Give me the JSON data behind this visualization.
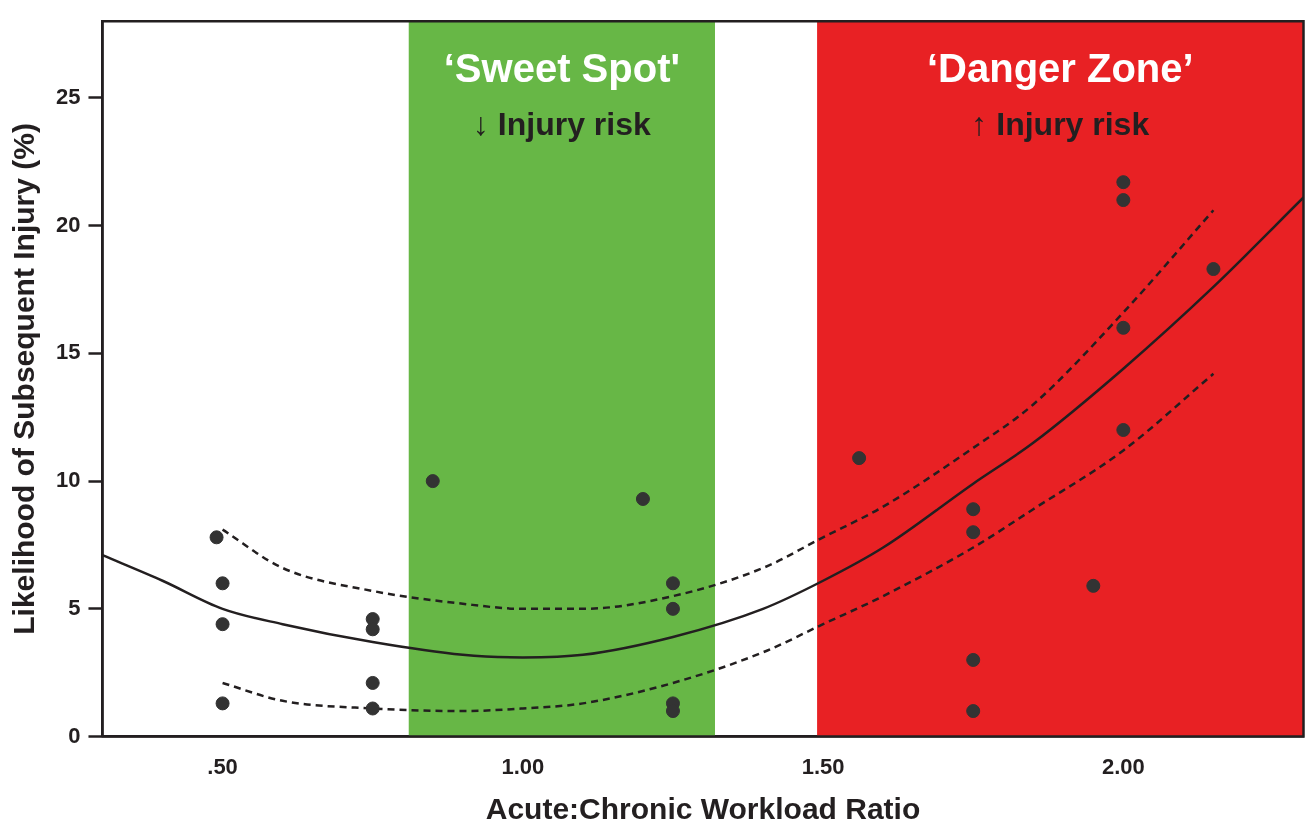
{
  "chart_data": {
    "type": "scatter",
    "xlabel": "Acute:Chronic Workload Ratio",
    "ylabel": "Likelihood of Subsequent Injury (%)",
    "xlim": [
      0.3,
      2.3
    ],
    "xticks": [
      {
        "value": 0.5,
        "label": ".50"
      },
      {
        "value": 1.0,
        "label": "1.00"
      },
      {
        "value": 1.5,
        "label": "1.50"
      },
      {
        "value": 2.0,
        "label": "2.00"
      }
    ],
    "ylim": [
      0,
      28
    ],
    "yticks": [
      0,
      5,
      10,
      15,
      20,
      25
    ],
    "grid": false,
    "legend": false,
    "marker": "circle",
    "bands": [
      {
        "axis": "x",
        "from": 0.81,
        "to": 1.32,
        "label": "‘Sweet Spot'",
        "color": "#67b746"
      },
      {
        "axis": "x",
        "from": 1.49,
        "to": 2.3,
        "label": "‘Danger Zone’",
        "color": "#e82124"
      }
    ],
    "annotations": [
      "↓ Injury risk",
      "↑ Injury risk"
    ],
    "series": [
      {
        "color": "#333333",
        "x": [
          0.49,
          0.5,
          0.5,
          0.5,
          0.75,
          0.75,
          0.75,
          0.75,
          0.85,
          1.2,
          1.25,
          1.25,
          1.25,
          1.25,
          1.56,
          1.75,
          1.75,
          1.75,
          1.75,
          1.95,
          2.0,
          2.0,
          2.0,
          2.0,
          2.15
        ],
        "values": [
          7.8,
          6.0,
          4.4,
          1.3,
          4.6,
          4.2,
          2.1,
          1.1,
          10.0,
          9.3,
          6.0,
          5.0,
          1.3,
          1.0,
          10.9,
          8.9,
          8.0,
          3.0,
          1.0,
          5.9,
          21.7,
          21.0,
          16.0,
          12.0,
          18.3
        ]
      },
      {
        "type": "line",
        "color": "#231f20",
        "line_style": "solid",
        "marker": "none",
        "x": [
          0.3,
          0.4,
          0.5,
          0.6,
          0.75,
          0.9,
          1.0,
          1.1,
          1.25,
          1.4,
          1.5,
          1.6,
          1.75,
          1.85,
          2.0,
          2.15,
          2.3
        ],
        "values": [
          7.1,
          6.1,
          5.0,
          4.4,
          3.7,
          3.2,
          3.1,
          3.2,
          3.9,
          5.0,
          6.1,
          7.4,
          9.9,
          11.5,
          14.4,
          17.6,
          21.1
        ]
      },
      {
        "type": "line",
        "color": "#231f20",
        "line_style": "dashed",
        "marker": "none",
        "x": [
          0.5,
          0.6,
          0.75,
          0.9,
          1.0,
          1.1,
          1.25,
          1.4,
          1.5,
          1.6,
          1.75,
          1.85,
          2.0,
          2.15
        ],
        "values": [
          8.1,
          6.6,
          5.7,
          5.2,
          5.0,
          5.0,
          5.5,
          6.6,
          7.8,
          9.0,
          11.3,
          13.0,
          16.6,
          20.6
        ]
      },
      {
        "type": "line",
        "color": "#231f20",
        "line_style": "dashed",
        "marker": "none",
        "x": [
          0.5,
          0.6,
          0.75,
          0.9,
          1.0,
          1.1,
          1.25,
          1.4,
          1.5,
          1.6,
          1.75,
          1.85,
          2.0,
          2.15
        ],
        "values": [
          2.1,
          1.4,
          1.1,
          1.0,
          1.1,
          1.3,
          2.1,
          3.3,
          4.4,
          5.5,
          7.4,
          8.9,
          11.2,
          14.2
        ]
      }
    ]
  }
}
